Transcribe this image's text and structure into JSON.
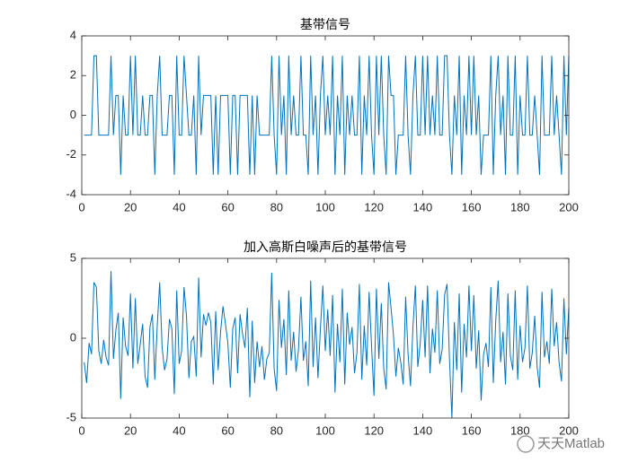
{
  "chart_data": [
    {
      "type": "line",
      "title": "基带信号",
      "color": "#0072bd",
      "xlim": [
        0,
        200
      ],
      "xticks": [
        0,
        20,
        40,
        60,
        80,
        100,
        120,
        140,
        160,
        180,
        200
      ],
      "ylim": [
        -4,
        4
      ],
      "yticks": [
        -4,
        -2,
        0,
        2,
        4
      ],
      "x": [
        1,
        2,
        3,
        4,
        5,
        6,
        7,
        8,
        9,
        10,
        11,
        12,
        13,
        14,
        15,
        16,
        17,
        18,
        19,
        20,
        21,
        22,
        23,
        24,
        25,
        26,
        27,
        28,
        29,
        30,
        31,
        32,
        33,
        34,
        35,
        36,
        37,
        38,
        39,
        40,
        41,
        42,
        43,
        44,
        45,
        46,
        47,
        48,
        49,
        50,
        51,
        52,
        53,
        54,
        55,
        56,
        57,
        58,
        59,
        60,
        61,
        62,
        63,
        64,
        65,
        66,
        67,
        68,
        69,
        70,
        71,
        72,
        73,
        74,
        75,
        76,
        77,
        78,
        79,
        80,
        81,
        82,
        83,
        84,
        85,
        86,
        87,
        88,
        89,
        90,
        91,
        92,
        93,
        94,
        95,
        96,
        97,
        98,
        99,
        100,
        101,
        102,
        103,
        104,
        105,
        106,
        107,
        108,
        109,
        110,
        111,
        112,
        113,
        114,
        115,
        116,
        117,
        118,
        119,
        120,
        121,
        122,
        123,
        124,
        125,
        126,
        127,
        128,
        129,
        130,
        131,
        132,
        133,
        134,
        135,
        136,
        137,
        138,
        139,
        140,
        141,
        142,
        143,
        144,
        145,
        146,
        147,
        148,
        149,
        150,
        151,
        152,
        153,
        154,
        155,
        156,
        157,
        158,
        159,
        160,
        161,
        162,
        163,
        164,
        165,
        166,
        167,
        168,
        169,
        170,
        171,
        172,
        173,
        174,
        175,
        176,
        177,
        178,
        179,
        180,
        181,
        182,
        183,
        184,
        185,
        186,
        187,
        188,
        189,
        190,
        191,
        192,
        193,
        194,
        195,
        196,
        197,
        198,
        199,
        200
      ],
      "values": [
        -1,
        -1,
        -1,
        -1,
        3,
        3,
        -1,
        -1,
        -1,
        -1,
        -1,
        3,
        -1,
        1,
        1,
        -3,
        1,
        -1,
        -1,
        3,
        -1,
        3,
        -1,
        -1,
        1,
        -1,
        -1,
        1,
        1,
        -3,
        1,
        3,
        -1,
        -1,
        -1,
        1,
        1,
        -3,
        3,
        -1,
        -1,
        3,
        1,
        -1,
        -1,
        1,
        -3,
        3,
        -1,
        1,
        1,
        1,
        1,
        -3,
        1,
        -3,
        1,
        1,
        1,
        1,
        -3,
        1,
        1,
        -3,
        1,
        1,
        1,
        1,
        -3,
        1,
        -3,
        1,
        -1,
        -1,
        -1,
        -1,
        -1,
        3,
        -1,
        -3,
        3,
        -1,
        1,
        -3,
        3,
        -1,
        1,
        -1,
        -1,
        3,
        -1,
        -1,
        -3,
        3,
        -1,
        1,
        -3,
        1,
        3,
        -1,
        1,
        -1,
        3,
        -3,
        1,
        -1,
        3,
        -3,
        1,
        -1,
        1,
        -1,
        -1,
        3,
        -3,
        1,
        -1,
        3,
        -1,
        -3,
        3,
        -1,
        3,
        -1,
        -3,
        3,
        1,
        1,
        -3,
        -1,
        -1,
        -1,
        3,
        -1,
        -3,
        1,
        3,
        -1,
        -1,
        3,
        -1,
        3,
        -1,
        1,
        -1,
        3,
        -1,
        -1,
        3,
        3,
        -1,
        -3,
        1,
        -1,
        3,
        -3,
        1,
        -1,
        3,
        -1,
        3,
        -1,
        1,
        -3,
        -1,
        -1,
        -1,
        3,
        -3,
        1,
        3,
        -1,
        1,
        -3,
        3,
        -1,
        -1,
        3,
        -3,
        1,
        -1,
        -1,
        3,
        -1,
        -1,
        1,
        -1,
        -3,
        3,
        -1,
        -1,
        -1,
        3,
        -1,
        1,
        -1,
        -3,
        3,
        -1,
        3
      ]
    },
    {
      "type": "line",
      "title": "加入高斯白噪声后的基带信号",
      "color": "#0072bd",
      "xlim": [
        0,
        200
      ],
      "xticks": [
        0,
        20,
        40,
        60,
        80,
        100,
        120,
        140,
        160,
        180,
        200
      ],
      "ylim": [
        -5,
        5
      ],
      "yticks": [
        -5,
        0,
        5
      ],
      "x": [
        1,
        2,
        3,
        4,
        5,
        6,
        7,
        8,
        9,
        10,
        11,
        12,
        13,
        14,
        15,
        16,
        17,
        18,
        19,
        20,
        21,
        22,
        23,
        24,
        25,
        26,
        27,
        28,
        29,
        30,
        31,
        32,
        33,
        34,
        35,
        36,
        37,
        38,
        39,
        40,
        41,
        42,
        43,
        44,
        45,
        46,
        47,
        48,
        49,
        50,
        51,
        52,
        53,
        54,
        55,
        56,
        57,
        58,
        59,
        60,
        61,
        62,
        63,
        64,
        65,
        66,
        67,
        68,
        69,
        70,
        71,
        72,
        73,
        74,
        75,
        76,
        77,
        78,
        79,
        80,
        81,
        82,
        83,
        84,
        85,
        86,
        87,
        88,
        89,
        90,
        91,
        92,
        93,
        94,
        95,
        96,
        97,
        98,
        99,
        100,
        101,
        102,
        103,
        104,
        105,
        106,
        107,
        108,
        109,
        110,
        111,
        112,
        113,
        114,
        115,
        116,
        117,
        118,
        119,
        120,
        121,
        122,
        123,
        124,
        125,
        126,
        127,
        128,
        129,
        130,
        131,
        132,
        133,
        134,
        135,
        136,
        137,
        138,
        139,
        140,
        141,
        142,
        143,
        144,
        145,
        146,
        147,
        148,
        149,
        150,
        151,
        152,
        153,
        154,
        155,
        156,
        157,
        158,
        159,
        160,
        161,
        162,
        163,
        164,
        165,
        166,
        167,
        168,
        169,
        170,
        171,
        172,
        173,
        174,
        175,
        176,
        177,
        178,
        179,
        180,
        181,
        182,
        183,
        184,
        185,
        186,
        187,
        188,
        189,
        190,
        191,
        192,
        193,
        194,
        195,
        196,
        197,
        198,
        199,
        200
      ],
      "values": [
        -1.5,
        -2.8,
        -0.3,
        -1.0,
        3.5,
        3.2,
        -0.8,
        -1.6,
        -0.1,
        -1.2,
        -1.7,
        4.2,
        -1.3,
        0.5,
        1.6,
        -3.8,
        1.3,
        -0.5,
        -1.1,
        2.8,
        -1.9,
        2.5,
        -1.6,
        -0.4,
        0.9,
        -2.4,
        -3.1,
        0.7,
        1.5,
        -2.6,
        0.8,
        3.5,
        -0.6,
        -2.0,
        -1.3,
        1.2,
        0.6,
        -3.5,
        3.0,
        -1.6,
        -0.8,
        3.2,
        1.4,
        -2.5,
        -0.2,
        0.1,
        -2.4,
        3.8,
        -1.2,
        1.5,
        0.8,
        1.6,
        1.0,
        -2.9,
        1.7,
        -2.0,
        0.4,
        2.0,
        0.9,
        -0.3,
        -3.1,
        0.6,
        1.3,
        -2.2,
        1.5,
        0.3,
        -0.6,
        1.9,
        -3.7,
        1.1,
        -2.8,
        -0.2,
        -1.8,
        -0.5,
        -2.6,
        -1.3,
        -0.9,
        4.1,
        -1.9,
        -3.3,
        2.4,
        -0.6,
        1.2,
        -2.3,
        3.0,
        -1.4,
        0.4,
        -2.1,
        -0.7,
        2.6,
        -1.4,
        -0.2,
        -3.0,
        3.6,
        -1.8,
        1.3,
        -2.5,
        0.6,
        3.3,
        -0.8,
        1.8,
        -1.1,
        2.7,
        -3.4,
        0.9,
        -1.5,
        3.1,
        -2.9,
        1.6,
        -0.4,
        0.7,
        -2.2,
        -0.9,
        3.4,
        -2.6,
        0.8,
        -1.7,
        2.9,
        -0.5,
        -3.6,
        3.1,
        -1.3,
        2.2,
        -1.9,
        -3.2,
        3.5,
        1.9,
        0.2,
        -2.4,
        -0.6,
        -1.5,
        -2.9,
        2.6,
        -1.0,
        -3.0,
        0.7,
        3.3,
        -1.8,
        -0.3,
        2.4,
        -1.2,
        3.3,
        -2.2,
        0.6,
        -0.9,
        3.0,
        -1.6,
        -0.7,
        2.7,
        3.4,
        -1.3,
        -5.0,
        1.0,
        -2.0,
        2.8,
        -3.4,
        0.9,
        -1.2,
        3.3,
        -0.8,
        2.7,
        -1.9,
        0.5,
        -3.9,
        -1.0,
        -0.3,
        -1.8,
        3.2,
        -2.8,
        1.1,
        3.6,
        -1.5,
        0.4,
        -2.9,
        2.8,
        -1.1,
        -2.0,
        3.0,
        -2.6,
        0.8,
        -1.5,
        -0.6,
        3.3,
        -1.9,
        -0.9,
        1.4,
        -1.8,
        -3.1,
        2.9,
        -1.2,
        -0.2,
        -1.6,
        3.1,
        -0.5,
        1.0,
        -1.5,
        -2.7,
        2.5,
        -1.0,
        1.9
      ]
    }
  ],
  "watermark": "天天Matlab"
}
